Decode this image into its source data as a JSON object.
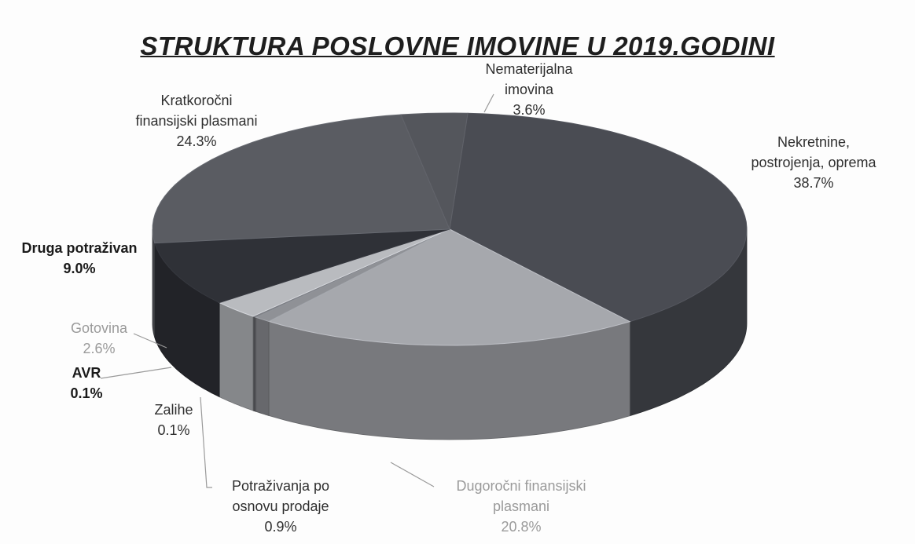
{
  "chart_data": {
    "type": "pie",
    "title": "STRUKTURA POSLOVNE IMOVINE U 2019.GODINI",
    "slices": [
      {
        "label_lines": [
          "Nekretnine,",
          "postrojenja, oprema"
        ],
        "value": 38.7,
        "value_label": "38.7%",
        "color": "#4a4c53",
        "label_style": "normal"
      },
      {
        "label_lines": [
          "Dugoročni finansijski",
          "plasmani"
        ],
        "value": 20.8,
        "value_label": "20.8%",
        "color": "#a6a8ad",
        "label_style": "light"
      },
      {
        "label_lines": [
          "Potraživanja po",
          "osnovu prodaje"
        ],
        "value": 0.9,
        "value_label": "0.9%",
        "color": "#8f9196",
        "label_style": "normal"
      },
      {
        "label_lines": [
          "Zalihe"
        ],
        "value": 0.1,
        "value_label": "0.1%",
        "color": "#7b7d82",
        "label_style": "normal"
      },
      {
        "label_lines": [
          "AVR"
        ],
        "value": 0.1,
        "value_label": "0.1%",
        "color": "#6c6e73",
        "label_style": "bold"
      },
      {
        "label_lines": [
          "Gotovina"
        ],
        "value": 2.6,
        "value_label": "2.6%",
        "color": "#b9bbbf",
        "label_style": "light"
      },
      {
        "label_lines": [
          "Druga potraživan"
        ],
        "value": 9.0,
        "value_label": "9.0%",
        "color": "#2f3137",
        "label_style": "bold"
      },
      {
        "label_lines": [
          "Kratkoročni",
          "finansijski plasmani"
        ],
        "value": 24.3,
        "value_label": "24.3%",
        "color": "#5a5c62",
        "label_style": "normal"
      },
      {
        "label_lines": [
          "Nematerijalna",
          "imovina"
        ],
        "value": 3.6,
        "value_label": "3.6%",
        "color": "#54565c",
        "label_style": "normal"
      }
    ]
  }
}
